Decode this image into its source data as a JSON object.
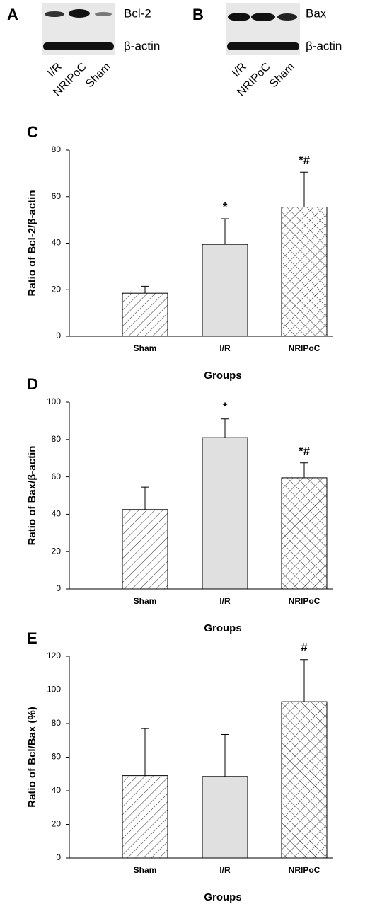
{
  "blots": [
    {
      "panel": "A",
      "lanes": [
        "I/R",
        "NRIPoC",
        "Sham"
      ],
      "bands": [
        "Bcl-2",
        "β-actin"
      ]
    },
    {
      "panel": "B",
      "lanes": [
        "I/R",
        "NRIPoC",
        "Sham"
      ],
      "bands": [
        "Bax",
        "β-actin"
      ]
    }
  ],
  "chart_data": [
    {
      "type": "bar",
      "panel": "C",
      "ylabel": "Ratio of Bcl-2/β-actin",
      "xlabel": "Groups",
      "categories": [
        "Sham",
        "I/R",
        "NRIPoC"
      ],
      "values": [
        18.5,
        39.5,
        55.5
      ],
      "errors": [
        3,
        11,
        15
      ],
      "fills": [
        "hatch",
        "solid",
        "crosshatch"
      ],
      "color": "#e0e0e0",
      "annotations": [
        {
          "x": "I/R",
          "text": "*"
        },
        {
          "x": "NRIPoC",
          "text": "*#"
        }
      ],
      "ylim": [
        0,
        80
      ],
      "yticks": [
        0,
        20,
        40,
        60,
        80
      ]
    },
    {
      "type": "bar",
      "panel": "D",
      "ylabel": "Ratio of Bax/β-actin",
      "xlabel": "Groups",
      "categories": [
        "Sham",
        "I/R",
        "NRIPoC"
      ],
      "values": [
        42.5,
        81,
        59.5
      ],
      "errors": [
        12,
        10,
        8
      ],
      "fills": [
        "hatch",
        "solid",
        "crosshatch"
      ],
      "color": "#e0e0e0",
      "annotations": [
        {
          "x": "I/R",
          "text": "*"
        },
        {
          "x": "NRIPoC",
          "text": "*#"
        }
      ],
      "ylim": [
        0,
        100
      ],
      "yticks": [
        0,
        20,
        40,
        60,
        80,
        100
      ]
    },
    {
      "type": "bar",
      "panel": "E",
      "ylabel": "Ratio of Bcl/Bax (%)",
      "xlabel": "Groups",
      "categories": [
        "Sham",
        "I/R",
        "NRIPoC"
      ],
      "values": [
        49,
        48.5,
        93
      ],
      "errors": [
        28,
        25,
        25
      ],
      "fills": [
        "hatch",
        "solid",
        "crosshatch"
      ],
      "color": "#e0e0e0",
      "annotations": [
        {
          "x": "NRIPoC",
          "text": "#"
        }
      ],
      "ylim": [
        0,
        120
      ],
      "yticks": [
        0,
        20,
        40,
        60,
        80,
        100,
        120
      ]
    }
  ]
}
